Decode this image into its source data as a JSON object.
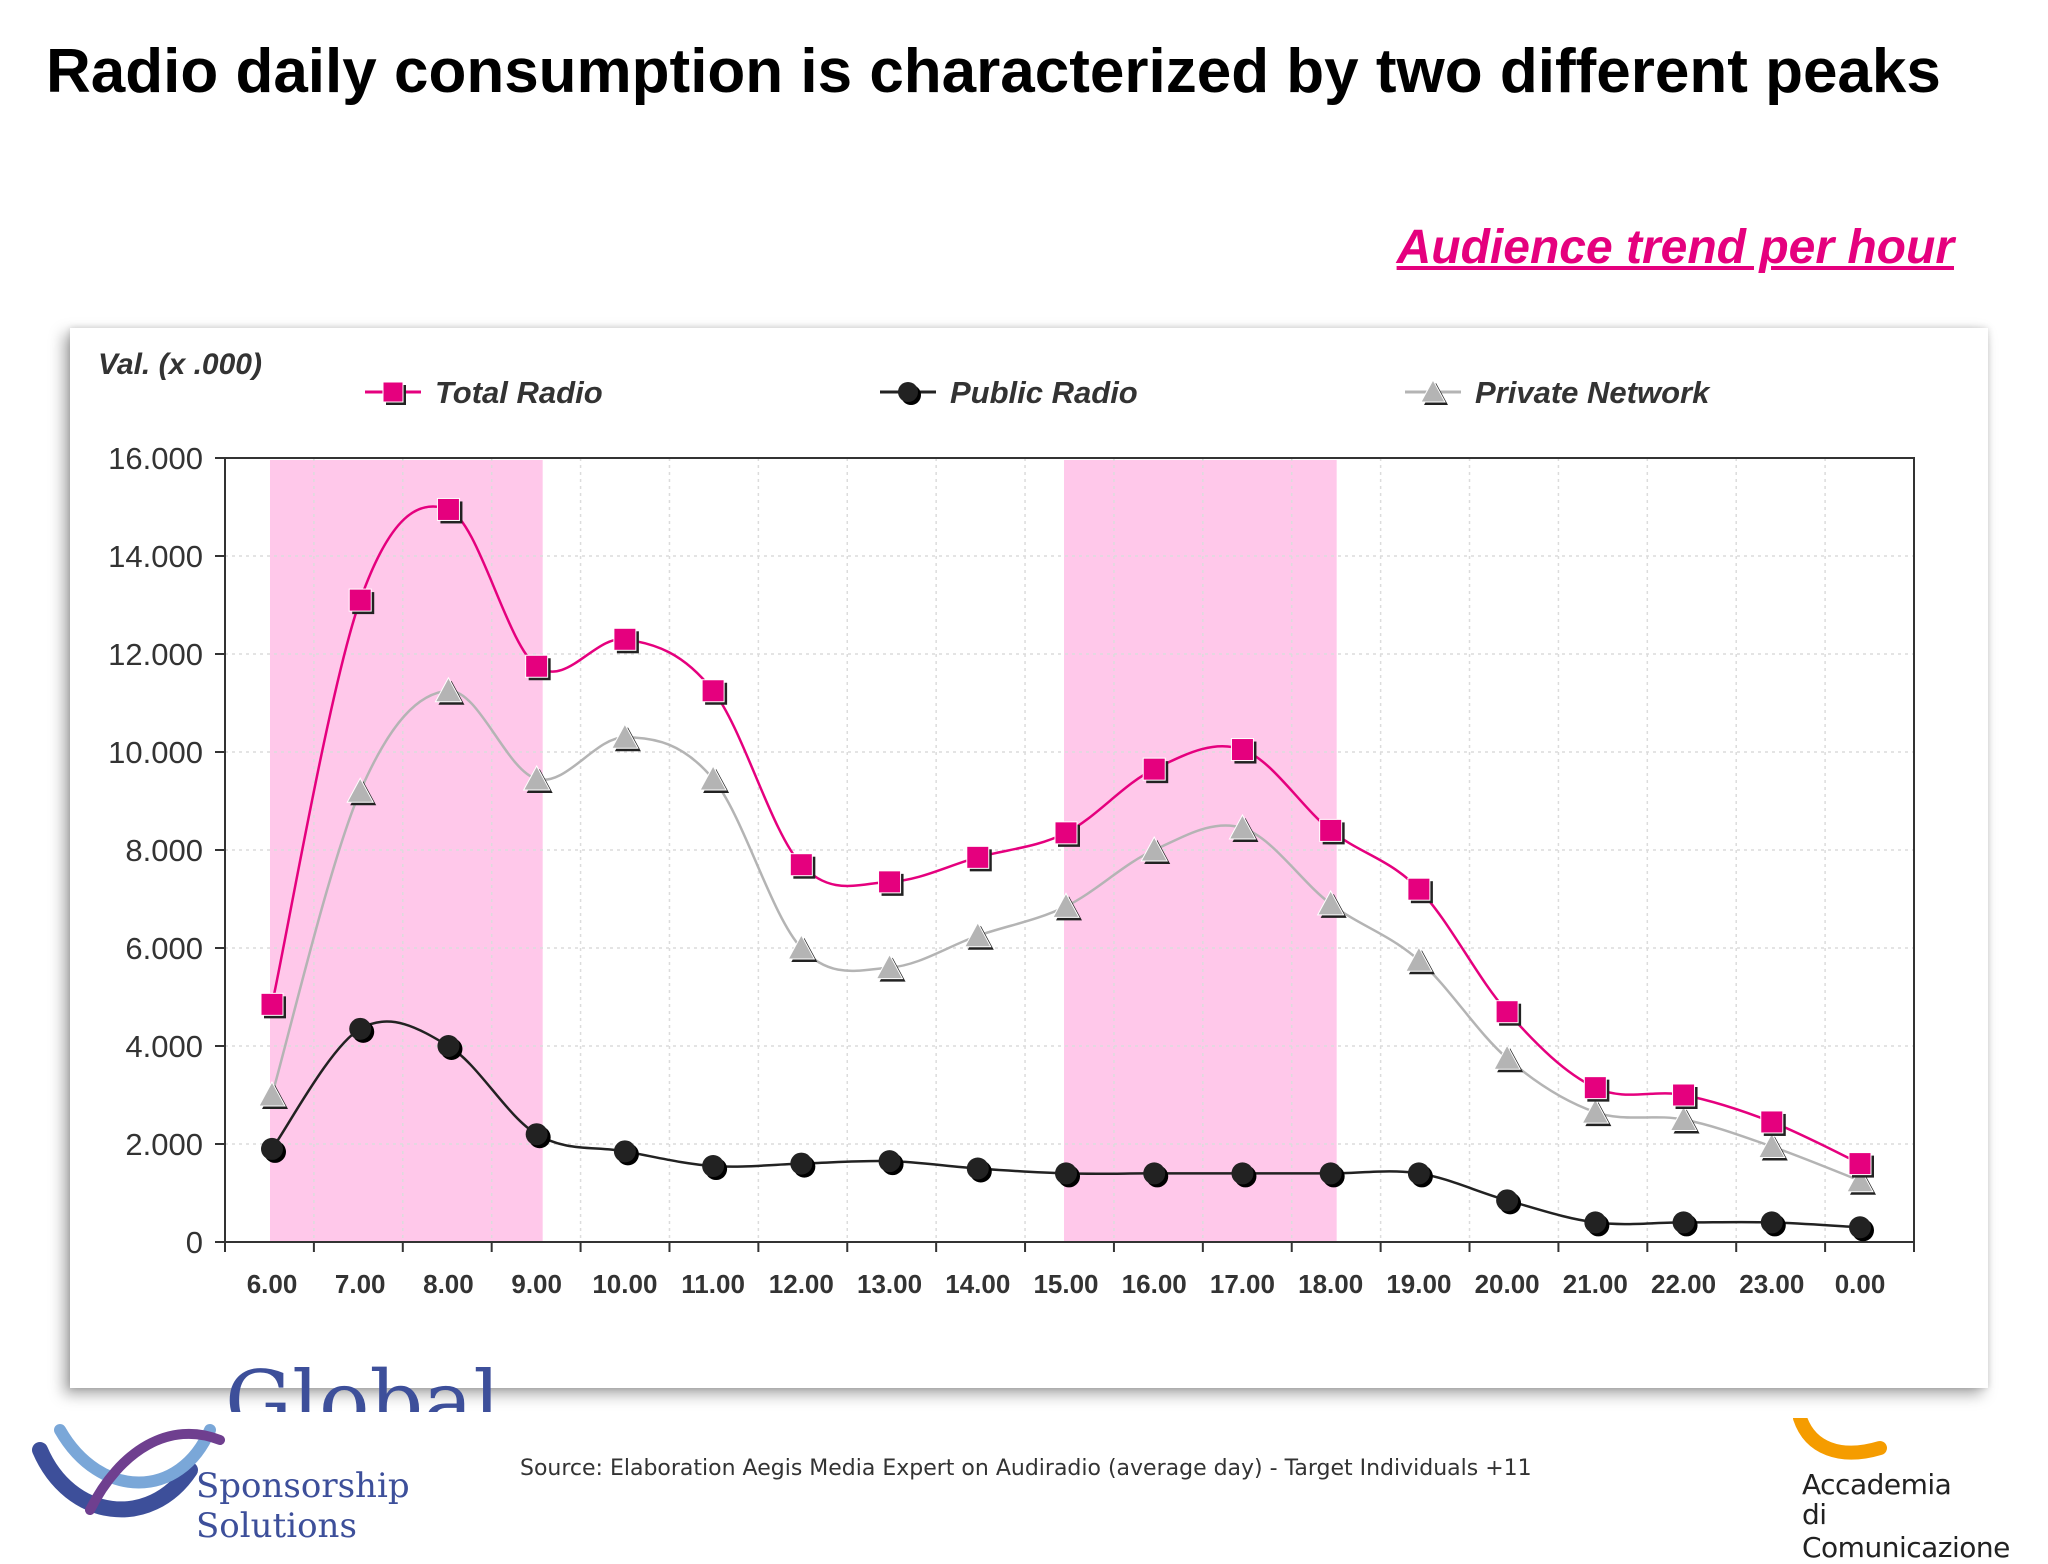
{
  "slide": {
    "title": "Radio daily consumption is characterized by two different peaks",
    "subtitle": "Audience trend per hour",
    "source": "Source: Elaboration Aegis Media Expert on Audiradio (average day) - Target Individuals +11"
  },
  "logos": {
    "left_text": "Sponsorship Solutions",
    "left_partial": "Global",
    "right_line1": "Accademia",
    "right_line2": "di Comunicazione"
  },
  "colors": {
    "total": "#e5007e",
    "public": "#222222",
    "private": "#b4b4b4",
    "highlight": "#ffc8ea",
    "accent": "#e5007e"
  },
  "chart_data": {
    "type": "line",
    "ylabel": "Val. (x .000)",
    "xlabel": "",
    "title": "",
    "ylim": [
      0,
      16000
    ],
    "yticks": [
      0,
      2000,
      4000,
      6000,
      8000,
      10000,
      12000,
      14000,
      16000
    ],
    "ytick_labels": [
      "0",
      "2.000",
      "4.000",
      "6.000",
      "8.000",
      "10.000",
      "12.000",
      "14.000",
      "16.000"
    ],
    "legend_position": "top",
    "grid": true,
    "categories": [
      "6.00",
      "7.00",
      "8.00",
      "9.00",
      "10.00",
      "11.00",
      "12.00",
      "13.00",
      "14.00",
      "15.00",
      "16.00",
      "17.00",
      "18.00",
      "19.00",
      "20.00",
      "21.00",
      "22.00",
      "23.00",
      "0.00"
    ],
    "highlight_ranges": [
      [
        "6.00",
        "9.00"
      ],
      [
        "15.00",
        "18.00"
      ]
    ],
    "series": [
      {
        "name": "Total Radio",
        "marker": "square",
        "values": [
          4850,
          13100,
          14950,
          11750,
          12300,
          11250,
          7700,
          7350,
          7850,
          8350,
          9650,
          10050,
          8400,
          7200,
          4700,
          3150,
          3000,
          2450,
          1600
        ]
      },
      {
        "name": "Public Radio",
        "marker": "circle",
        "values": [
          1900,
          4350,
          4000,
          2200,
          1850,
          1550,
          1600,
          1650,
          1500,
          1400,
          1400,
          1400,
          1400,
          1400,
          850,
          400,
          400,
          400,
          300
        ]
      },
      {
        "name": "Private Network",
        "marker": "triangle",
        "values": [
          3000,
          9200,
          11250,
          9450,
          10300,
          9450,
          6000,
          5600,
          6250,
          6850,
          8000,
          8450,
          6900,
          5750,
          3750,
          2650,
          2500,
          1950,
          1250
        ]
      }
    ]
  }
}
